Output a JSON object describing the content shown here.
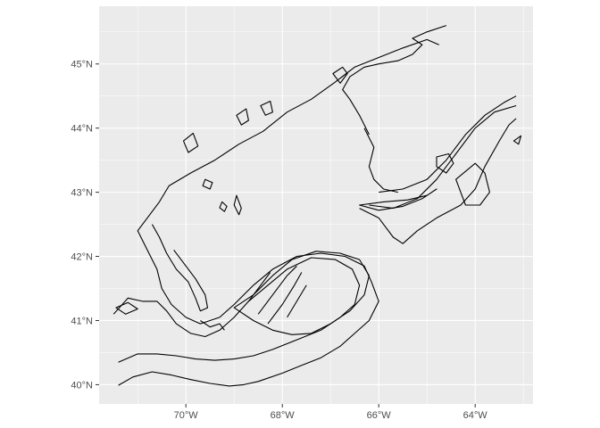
{
  "map": {
    "type": "contour-map",
    "panel_background": "#ebebeb",
    "grid_color": "#ffffff",
    "line_color": "#000000",
    "x_range": [
      -71.8,
      -62.8
    ],
    "y_range": [
      39.7,
      45.9
    ],
    "x_ticks": [
      {
        "value": -70,
        "label": "70°W"
      },
      {
        "value": -68,
        "label": "68°W"
      },
      {
        "value": -66,
        "label": "66°W"
      },
      {
        "value": -64,
        "label": "64°W"
      }
    ],
    "y_ticks": [
      {
        "value": 45,
        "label": "45°N"
      },
      {
        "value": 44,
        "label": "44°N"
      },
      {
        "value": 43,
        "label": "43°N"
      },
      {
        "value": 42,
        "label": "42°N"
      },
      {
        "value": 41,
        "label": "41°N"
      },
      {
        "value": 40,
        "label": "40°N"
      }
    ],
    "contours": [
      {
        "name": "outer-shelf-contour",
        "closed": false,
        "points": [
          [
            -71.4,
            39.99
          ],
          [
            -71.1,
            40.12
          ],
          [
            -70.7,
            40.2
          ],
          [
            -70.3,
            40.15
          ],
          [
            -69.9,
            40.08
          ],
          [
            -69.5,
            40.02
          ],
          [
            -69.1,
            39.98
          ],
          [
            -68.8,
            40.0
          ],
          [
            -68.5,
            40.05
          ],
          [
            -68.0,
            40.18
          ],
          [
            -67.6,
            40.3
          ],
          [
            -67.2,
            40.42
          ],
          [
            -66.8,
            40.6
          ],
          [
            -66.5,
            40.8
          ],
          [
            -66.2,
            41.0
          ],
          [
            -66.0,
            41.3
          ],
          [
            -66.15,
            41.6
          ],
          [
            -66.3,
            41.85
          ],
          [
            -66.7,
            42.0
          ],
          [
            -67.2,
            42.05
          ],
          [
            -67.7,
            42.0
          ],
          [
            -68.2,
            41.8
          ],
          [
            -68.6,
            41.55
          ],
          [
            -69.0,
            41.25
          ],
          [
            -69.3,
            41.05
          ],
          [
            -69.7,
            40.95
          ],
          [
            -70.0,
            41.05
          ],
          [
            -70.3,
            41.25
          ],
          [
            -70.5,
            41.5
          ],
          [
            -70.6,
            41.8
          ],
          [
            -70.8,
            42.1
          ],
          [
            -71.0,
            42.4
          ],
          [
            -70.8,
            42.6
          ],
          [
            -70.55,
            42.85
          ],
          [
            -70.35,
            43.1
          ],
          [
            -69.9,
            43.3
          ],
          [
            -69.4,
            43.5
          ],
          [
            -68.9,
            43.75
          ],
          [
            -68.4,
            43.95
          ],
          [
            -67.9,
            44.25
          ],
          [
            -67.4,
            44.45
          ],
          [
            -66.9,
            44.72
          ],
          [
            -66.5,
            44.95
          ],
          [
            -66.0,
            45.1
          ],
          [
            -65.5,
            45.25
          ],
          [
            -65.0,
            45.38
          ],
          [
            -64.75,
            45.3
          ]
        ]
      },
      {
        "name": "mid-shelf-contour",
        "closed": false,
        "points": [
          [
            -71.4,
            40.35
          ],
          [
            -71.0,
            40.48
          ],
          [
            -70.6,
            40.48
          ],
          [
            -70.2,
            40.45
          ],
          [
            -69.8,
            40.4
          ],
          [
            -69.4,
            40.38
          ],
          [
            -69.0,
            40.4
          ],
          [
            -68.6,
            40.45
          ],
          [
            -68.2,
            40.55
          ],
          [
            -67.7,
            40.7
          ],
          [
            -67.2,
            40.85
          ],
          [
            -66.8,
            41.05
          ],
          [
            -66.5,
            41.25
          ],
          [
            -66.4,
            41.55
          ],
          [
            -66.55,
            41.8
          ],
          [
            -66.9,
            41.95
          ],
          [
            -67.4,
            41.98
          ],
          [
            -67.9,
            41.8
          ],
          [
            -68.3,
            41.55
          ],
          [
            -68.7,
            41.3
          ],
          [
            -69.0,
            41.05
          ],
          [
            -69.3,
            40.85
          ],
          [
            -69.6,
            40.75
          ],
          [
            -69.9,
            40.8
          ],
          [
            -70.2,
            40.95
          ],
          [
            -70.4,
            41.15
          ],
          [
            -70.6,
            41.3
          ],
          [
            -70.9,
            41.3
          ],
          [
            -71.2,
            41.35
          ],
          [
            -71.5,
            41.1
          ]
        ]
      },
      {
        "name": "georges-bank-contour",
        "closed": true,
        "points": [
          [
            -69.0,
            41.2
          ],
          [
            -68.6,
            41.4
          ],
          [
            -68.2,
            41.7
          ],
          [
            -67.8,
            41.95
          ],
          [
            -67.3,
            42.08
          ],
          [
            -66.8,
            42.05
          ],
          [
            -66.4,
            41.95
          ],
          [
            -66.2,
            41.7
          ],
          [
            -66.3,
            41.4
          ],
          [
            -66.6,
            41.15
          ],
          [
            -67.0,
            40.95
          ],
          [
            -67.4,
            40.8
          ],
          [
            -67.8,
            40.78
          ],
          [
            -68.2,
            40.85
          ],
          [
            -68.6,
            41.0
          ]
        ]
      },
      {
        "name": "fundy-coast-contour",
        "closed": false,
        "points": [
          [
            -66.2,
            43.9
          ],
          [
            -66.4,
            44.2
          ],
          [
            -66.6,
            44.45
          ],
          [
            -66.75,
            44.6
          ],
          [
            -66.6,
            44.8
          ],
          [
            -66.3,
            44.95
          ],
          [
            -66.0,
            45.0
          ],
          [
            -65.6,
            45.05
          ],
          [
            -65.3,
            45.15
          ],
          [
            -65.1,
            45.3
          ],
          [
            -65.3,
            45.4
          ],
          [
            -65.0,
            45.5
          ],
          [
            -64.6,
            45.6
          ]
        ]
      },
      {
        "name": "scotian-shelf-inner-contour",
        "closed": false,
        "points": [
          [
            -66.0,
            43.0
          ],
          [
            -65.5,
            43.05
          ],
          [
            -65.0,
            43.2
          ],
          [
            -64.6,
            43.5
          ],
          [
            -64.2,
            43.9
          ],
          [
            -63.8,
            44.2
          ],
          [
            -63.4,
            44.4
          ],
          [
            -63.15,
            44.5
          ]
        ]
      },
      {
        "name": "scotian-shelf-mid-contour",
        "closed": false,
        "points": [
          [
            -66.2,
            42.8
          ],
          [
            -65.7,
            42.75
          ],
          [
            -65.2,
            42.9
          ],
          [
            -64.8,
            43.2
          ],
          [
            -64.4,
            43.6
          ],
          [
            -64.0,
            44.0
          ],
          [
            -63.6,
            44.25
          ],
          [
            -63.15,
            44.35
          ]
        ]
      },
      {
        "name": "scotian-shelf-outer-contour",
        "closed": false,
        "points": [
          [
            -66.4,
            42.75
          ],
          [
            -66.0,
            42.6
          ],
          [
            -65.7,
            42.3
          ],
          [
            -65.5,
            42.2
          ],
          [
            -65.2,
            42.4
          ],
          [
            -64.8,
            42.6
          ],
          [
            -64.3,
            42.8
          ],
          [
            -64.0,
            43.05
          ],
          [
            -63.8,
            43.4
          ],
          [
            -63.5,
            43.8
          ],
          [
            -63.3,
            44.05
          ],
          [
            -63.15,
            44.15
          ]
        ]
      },
      {
        "name": "browns-bank-contour",
        "closed": true,
        "points": [
          [
            -66.4,
            42.8
          ],
          [
            -65.9,
            42.85
          ],
          [
            -65.4,
            42.88
          ],
          [
            -65.0,
            42.95
          ],
          [
            -64.8,
            43.05
          ],
          [
            -65.1,
            42.9
          ],
          [
            -65.5,
            42.78
          ],
          [
            -66.0,
            42.72
          ]
        ]
      },
      {
        "name": "emerald-bank-contour",
        "closed": true,
        "points": [
          [
            -64.4,
            43.2
          ],
          [
            -64.0,
            43.45
          ],
          [
            -63.8,
            43.3
          ],
          [
            -63.7,
            43.0
          ],
          [
            -63.9,
            42.8
          ],
          [
            -64.2,
            42.8
          ],
          [
            -64.3,
            43.0
          ]
        ]
      },
      {
        "name": "sable-bank-contour",
        "closed": true,
        "points": [
          [
            -64.8,
            43.55
          ],
          [
            -64.55,
            43.6
          ],
          [
            -64.45,
            43.45
          ],
          [
            -64.6,
            43.3
          ],
          [
            -64.8,
            43.4
          ]
        ]
      },
      {
        "name": "cape-sable-channel-contour",
        "closed": false,
        "points": [
          [
            -66.3,
            44.0
          ],
          [
            -66.1,
            43.7
          ],
          [
            -66.2,
            43.4
          ],
          [
            -66.1,
            43.2
          ],
          [
            -65.9,
            43.05
          ],
          [
            -65.6,
            43.0
          ]
        ]
      },
      {
        "name": "coastal-shelf-contour",
        "closed": false,
        "points": [
          [
            -70.7,
            42.5
          ],
          [
            -70.55,
            42.3
          ],
          [
            -70.4,
            42.05
          ],
          [
            -70.2,
            41.8
          ],
          [
            -69.95,
            41.6
          ],
          [
            -69.8,
            41.35
          ],
          [
            -69.7,
            41.15
          ],
          [
            -69.55,
            41.2
          ],
          [
            -69.6,
            41.4
          ],
          [
            -69.8,
            41.65
          ],
          [
            -70.0,
            41.85
          ],
          [
            -70.25,
            42.1
          ]
        ]
      },
      {
        "name": "nantucket-shoal-contour",
        "closed": true,
        "points": [
          [
            -71.45,
            41.2
          ],
          [
            -71.2,
            41.28
          ],
          [
            -71.0,
            41.18
          ],
          [
            -71.25,
            41.1
          ]
        ]
      },
      {
        "name": "wilkinson-basin-contour",
        "closed": true,
        "points": [
          [
            -68.95,
            42.95
          ],
          [
            -68.85,
            42.75
          ],
          [
            -68.9,
            42.65
          ],
          [
            -69.0,
            42.8
          ]
        ]
      },
      {
        "name": "jeffreys-ledge-contour",
        "closed": true,
        "points": [
          [
            -69.6,
            43.2
          ],
          [
            -69.45,
            43.15
          ],
          [
            -69.5,
            43.05
          ],
          [
            -69.65,
            43.1
          ]
        ]
      },
      {
        "name": "cashes-ledge-contour",
        "closed": true,
        "points": [
          [
            -69.25,
            42.85
          ],
          [
            -69.15,
            42.78
          ],
          [
            -69.2,
            42.7
          ],
          [
            -69.3,
            42.76
          ]
        ]
      },
      {
        "name": "grand-manan-contour",
        "closed": true,
        "points": [
          [
            -66.95,
            44.85
          ],
          [
            -66.75,
            44.95
          ],
          [
            -66.65,
            44.85
          ],
          [
            -66.8,
            44.7
          ]
        ]
      },
      {
        "name": "mt-desert-contour",
        "closed": true,
        "points": [
          [
            -68.45,
            44.35
          ],
          [
            -68.25,
            44.42
          ],
          [
            -68.2,
            44.25
          ],
          [
            -68.35,
            44.2
          ]
        ]
      },
      {
        "name": "penobscot-contour",
        "closed": true,
        "points": [
          [
            -68.95,
            44.2
          ],
          [
            -68.75,
            44.3
          ],
          [
            -68.7,
            44.12
          ],
          [
            -68.85,
            44.05
          ]
        ]
      },
      {
        "name": "casco-bay-contour",
        "closed": true,
        "points": [
          [
            -70.05,
            43.8
          ],
          [
            -69.85,
            43.92
          ],
          [
            -69.75,
            43.72
          ],
          [
            -69.95,
            43.62
          ]
        ]
      },
      {
        "name": "georges-ridges-1",
        "closed": false,
        "points": [
          [
            -68.5,
            41.1
          ],
          [
            -68.2,
            41.4
          ],
          [
            -67.9,
            41.7
          ],
          [
            -67.7,
            41.85
          ]
        ]
      },
      {
        "name": "georges-ridges-2",
        "closed": false,
        "points": [
          [
            -68.3,
            40.95
          ],
          [
            -68.0,
            41.25
          ],
          [
            -67.75,
            41.55
          ],
          [
            -67.6,
            41.75
          ]
        ]
      },
      {
        "name": "georges-ridges-3",
        "closed": false,
        "points": [
          [
            -67.9,
            41.05
          ],
          [
            -67.7,
            41.3
          ],
          [
            -67.5,
            41.55
          ]
        ]
      },
      {
        "name": "georges-ridges-4",
        "closed": false,
        "points": [
          [
            -68.7,
            41.3
          ],
          [
            -68.45,
            41.55
          ],
          [
            -68.25,
            41.75
          ]
        ]
      },
      {
        "name": "nantucket-ridges",
        "closed": false,
        "points": [
          [
            -69.7,
            41.0
          ],
          [
            -69.5,
            40.9
          ],
          [
            -69.3,
            40.95
          ],
          [
            -69.2,
            40.85
          ]
        ]
      },
      {
        "name": "scotian-east-island",
        "closed": true,
        "points": [
          [
            -63.2,
            43.8
          ],
          [
            -63.05,
            43.88
          ],
          [
            -63.1,
            43.75
          ]
        ]
      }
    ]
  }
}
